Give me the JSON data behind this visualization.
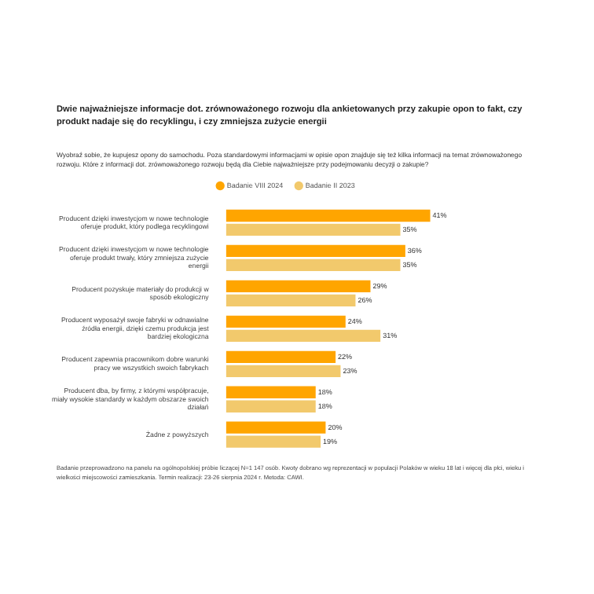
{
  "chart_data": {
    "type": "bar",
    "orientation": "horizontal",
    "title": "Dwie najważniejsze informacje dot. zrównoważonego rozwoju dla ankietowanych przy zakupie opon to fakt, czy produkt nadaje się do recyklingu, i czy zmniejsza zużycie energii",
    "subtitle": "Wyobraź sobie, że kupujesz opony do samochodu. Poza standardowymi informacjami w opisie opon znajduje się też kilka informacji na temat zrównoważonego rozwoju. Które z informacji dot. zrównoważonego rozwoju będą dla Ciebie najważniejsze przy podejmowaniu decyzji o zakupie?",
    "categories": [
      "Producent dzięki inwestycjom w nowe technologie oferuje produkt, który podlega recyklingowi",
      "Producent dzięki inwestycjom w nowe technologie oferuje produkt trwały, który zmniejsza zużycie energii",
      "Producent pozyskuje materiały do produkcji w sposób ekologiczny",
      "Producent wyposażył swoje fabryki w odnawialne źródła energii, dzięki czemu produkcja jest bardziej ekologiczna",
      "Producent zapewnia pracownikom dobre warunki pracy we wszystkich swoich fabrykach",
      "Producent dba, by firmy, z którymi współpracuje, miały wysokie standardy w każdym obszarze swoich działań",
      "Żadne z powyższych"
    ],
    "series": [
      {
        "name": "Badanie VIII 2024",
        "color": "#ffa500",
        "values": [
          41,
          36,
          29,
          24,
          22,
          18,
          20
        ],
        "value_labels": [
          "41%",
          "36%",
          "29%",
          "24%",
          "22%",
          "18%",
          "20%"
        ]
      },
      {
        "name": "Badanie II 2023",
        "color": "#f2c96c",
        "values": [
          35,
          35,
          26,
          31,
          23,
          18,
          19
        ],
        "value_labels": [
          "35%",
          "35%",
          "26%",
          "31%",
          "23%",
          "18%",
          "19%"
        ]
      }
    ],
    "legend": "top",
    "grid": false,
    "annotations": [
      "Badanie przeprowadzono na panelu na ogólnopolskiej próbie liczącej N=1 147 osób. Kwoty dobrano wg reprezentacji w populacji Polaków w wieku 18 lat i więcej dla płci, wieku i wielkości miejscowości zamieszkania. Termin realizacji: 23-26 sierpnia 2024 r. Metoda: CAWI."
    ]
  }
}
